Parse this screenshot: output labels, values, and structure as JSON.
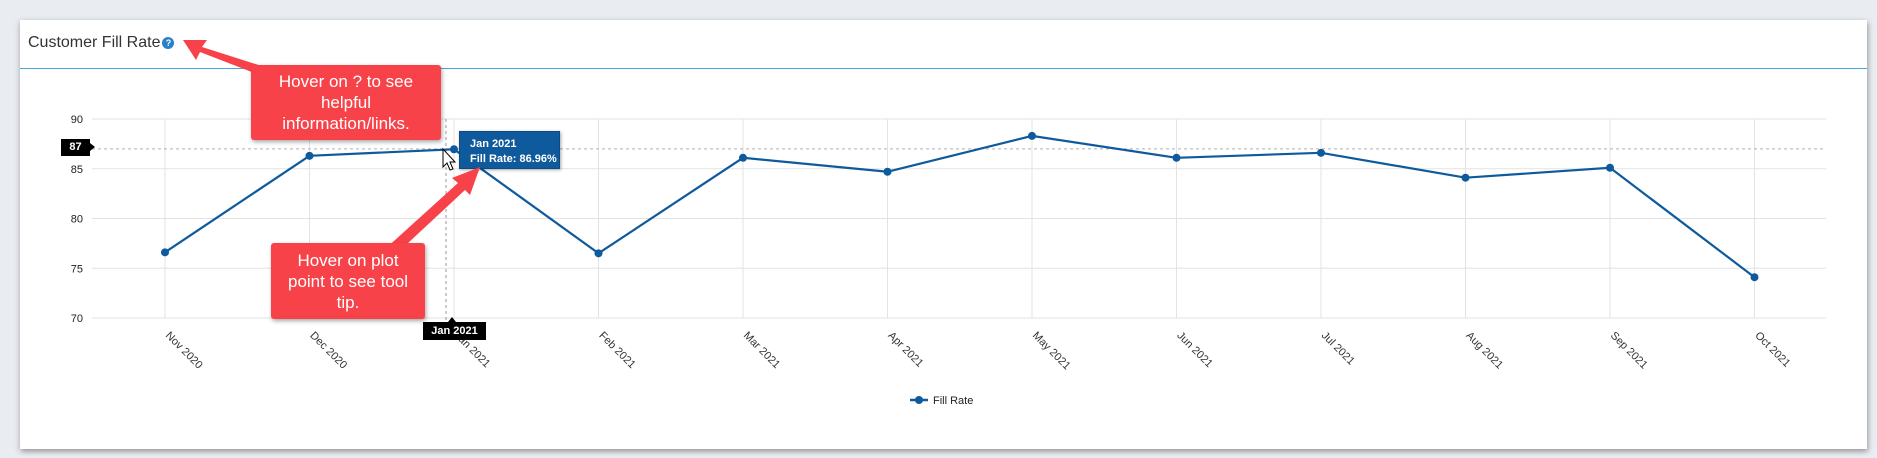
{
  "card": {
    "title": "Customer Fill Rate",
    "help_icon": "?"
  },
  "annotations": {
    "help_callout": "Hover on ? to see helpful information/links.",
    "tooltip_callout": "Hover on plot point to see tool tip."
  },
  "tooltip": {
    "title": "Jan 2021",
    "label": "Fill Rate: 86.96%"
  },
  "crosshair": {
    "y_label": "87",
    "x_label": "Jan 2021"
  },
  "legend": {
    "label": "Fill Rate"
  },
  "colors": {
    "series": "#0e5a9c",
    "callout": "#f8424a",
    "header_rule": "#4aa6dc"
  },
  "chart_data": {
    "type": "line",
    "title": "Customer Fill Rate",
    "xlabel": "",
    "ylabel": "",
    "categories": [
      "Nov 2020",
      "Dec 2020",
      "Jan 2021",
      "Feb 2021",
      "Mar 2021",
      "Apr 2021",
      "May 2021",
      "Jun 2021",
      "Jul 2021",
      "Aug 2021",
      "Sep 2021",
      "Oct 2021"
    ],
    "series": [
      {
        "name": "Fill Rate",
        "values": [
          76.6,
          86.3,
          86.96,
          76.5,
          86.1,
          84.7,
          88.3,
          86.1,
          86.6,
          84.1,
          85.1,
          74.1
        ]
      }
    ],
    "y_ticks": [
      70,
      75,
      80,
      85,
      90
    ],
    "ylim": [
      70,
      90
    ],
    "grid": true,
    "legend_position": "bottom",
    "crosshair_value": 87
  }
}
